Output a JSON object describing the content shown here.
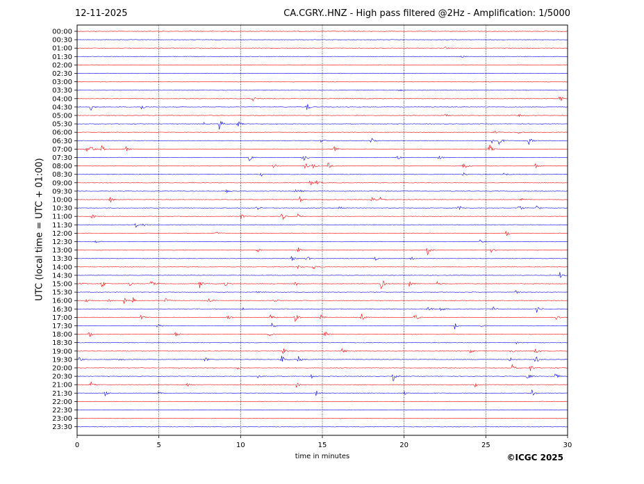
{
  "header": {
    "date": "12-11-2025",
    "title": "CA.CGRY..HNZ - High pass filtered @2Hz - Amplification: 1/5000"
  },
  "footer": {
    "copyright": "©ICGC 2025"
  },
  "chart_data": {
    "type": "line",
    "title": "CA.CGRY..HNZ - High pass filtered @2Hz - Amplification: 1/5000",
    "xlabel": "time in minutes",
    "ylabel": "UTC (local time = UTC + 01:00)",
    "xlim": [
      0,
      30
    ],
    "x_ticks": [
      0,
      5,
      10,
      15,
      20,
      25,
      30
    ],
    "x_tick_labels": [
      "0",
      "5",
      "10",
      "15",
      "20",
      "25",
      "30"
    ],
    "row_labels": [
      "00:00",
      "00:30",
      "01:00",
      "01:30",
      "02:00",
      "02:30",
      "03:00",
      "03:30",
      "04:00",
      "04:30",
      "05:00",
      "05:30",
      "06:00",
      "06:30",
      "07:00",
      "07:30",
      "08:00",
      "08:30",
      "09:00",
      "09:30",
      "10:00",
      "10:30",
      "11:00",
      "11:30",
      "12:00",
      "12:30",
      "13:00",
      "13:30",
      "14:00",
      "14:30",
      "15:00",
      "15:30",
      "16:00",
      "16:30",
      "17:00",
      "17:30",
      "18:00",
      "18:30",
      "19:00",
      "19:30",
      "20:00",
      "20:30",
      "21:00",
      "21:30",
      "22:00",
      "22:30",
      "23:00",
      "23:30"
    ],
    "row_colors": [
      "#ff0000",
      "#0000ff"
    ],
    "vertical_grid": "dotted",
    "traces": [
      {
        "row": "00:00",
        "activity": []
      },
      {
        "row": "00:30",
        "activity": []
      },
      {
        "row": "01:00",
        "activity": [
          [
            22.5,
            0.2
          ]
        ]
      },
      {
        "row": "01:30",
        "activity": [
          [
            23.5,
            0.2
          ]
        ]
      },
      {
        "row": "02:00",
        "activity": []
      },
      {
        "row": "02:30",
        "activity": []
      },
      {
        "row": "03:00",
        "activity": []
      },
      {
        "row": "03:30",
        "activity": [
          [
            19.7,
            0.2
          ]
        ]
      },
      {
        "row": "04:00",
        "activity": [
          [
            10.7,
            0.6
          ],
          [
            29.5,
            0.8
          ]
        ]
      },
      {
        "row": "04:30",
        "activity": [
          [
            0.8,
            0.7
          ],
          [
            3.9,
            0.6
          ],
          [
            14.0,
            0.9
          ]
        ]
      },
      {
        "row": "05:00",
        "activity": [
          [
            22.5,
            0.3
          ],
          [
            27.0,
            0.2
          ]
        ]
      },
      {
        "row": "05:30",
        "activity": [
          [
            8.7,
            0.9
          ],
          [
            9.8,
            0.7
          ],
          [
            7.7,
            0.3
          ]
        ]
      },
      {
        "row": "06:00",
        "activity": [
          [
            25.5,
            0.3
          ],
          [
            27.0,
            0.3
          ]
        ]
      },
      {
        "row": "06:30",
        "activity": [
          [
            14.9,
            0.5
          ],
          [
            18.0,
            0.8
          ],
          [
            25.3,
            0.7
          ],
          [
            25.8,
            0.8
          ],
          [
            27.6,
            0.8
          ]
        ]
      },
      {
        "row": "07:00",
        "activity": [
          [
            0.5,
            0.7
          ],
          [
            0.8,
            0.9
          ],
          [
            1.5,
            0.7
          ],
          [
            3.0,
            0.4
          ],
          [
            15.7,
            0.5
          ],
          [
            25.2,
            0.9
          ]
        ]
      },
      {
        "row": "07:30",
        "activity": [
          [
            10.5,
            0.7
          ],
          [
            13.8,
            0.8
          ],
          [
            19.6,
            0.6
          ],
          [
            22.1,
            0.6
          ]
        ]
      },
      {
        "row": "08:00",
        "activity": [
          [
            12.0,
            0.6
          ],
          [
            13.9,
            0.8
          ],
          [
            14.4,
            0.6
          ],
          [
            15.3,
            0.8
          ],
          [
            23.6,
            0.9
          ],
          [
            28.0,
            0.5
          ]
        ]
      },
      {
        "row": "08:30",
        "activity": [
          [
            11.2,
            0.4
          ],
          [
            23.6,
            0.4
          ],
          [
            26.1,
            0.3
          ]
        ]
      },
      {
        "row": "09:00",
        "activity": [
          [
            14.2,
            0.7
          ],
          [
            14.6,
            0.5
          ]
        ]
      },
      {
        "row": "09:30",
        "activity": [
          [
            13.3,
            0.7
          ],
          [
            13.6,
            0.5
          ],
          [
            9.1,
            0.3
          ]
        ]
      },
      {
        "row": "10:00",
        "activity": [
          [
            2.0,
            0.6
          ],
          [
            13.6,
            0.6
          ],
          [
            18.0,
            0.9
          ],
          [
            18.5,
            0.5
          ],
          [
            27.1,
            0.4
          ]
        ]
      },
      {
        "row": "10:30",
        "activity": [
          [
            10.9,
            0.6
          ],
          [
            16.0,
            0.5
          ],
          [
            23.3,
            0.6
          ],
          [
            27.0,
            0.6
          ],
          [
            28.1,
            0.6
          ]
        ]
      },
      {
        "row": "11:00",
        "activity": [
          [
            0.9,
            0.4
          ],
          [
            10.0,
            0.6
          ],
          [
            12.5,
            0.9
          ],
          [
            13.5,
            0.6
          ]
        ]
      },
      {
        "row": "11:30",
        "activity": [
          [
            3.6,
            0.5
          ],
          [
            4.0,
            0.4
          ]
        ]
      },
      {
        "row": "12:00",
        "activity": [
          [
            8.5,
            0.3
          ],
          [
            26.2,
            0.6
          ]
        ]
      },
      {
        "row": "12:30",
        "activity": [
          [
            1.1,
            0.3
          ],
          [
            24.6,
            0.4
          ]
        ]
      },
      {
        "row": "13:00",
        "activity": [
          [
            11.0,
            0.4
          ],
          [
            13.5,
            0.5
          ],
          [
            21.4,
            0.9
          ],
          [
            25.3,
            0.4
          ]
        ]
      },
      {
        "row": "13:30",
        "activity": [
          [
            13.1,
            0.5
          ],
          [
            14.0,
            0.6
          ],
          [
            18.2,
            0.4
          ],
          [
            20.4,
            0.4
          ]
        ]
      },
      {
        "row": "14:00",
        "activity": [
          [
            13.5,
            0.4
          ],
          [
            14.4,
            0.7
          ]
        ]
      },
      {
        "row": "14:30",
        "activity": [
          [
            29.5,
            0.6
          ]
        ]
      },
      {
        "row": "15:00",
        "activity": [
          [
            0.2,
            0.5
          ],
          [
            1.5,
            0.7
          ],
          [
            3.2,
            0.5
          ],
          [
            4.5,
            0.7
          ],
          [
            7.5,
            0.7
          ],
          [
            9.0,
            0.5
          ],
          [
            13.3,
            0.5
          ],
          [
            18.6,
            1.0
          ],
          [
            20.3,
            0.6
          ],
          [
            22.0,
            0.4
          ]
        ]
      },
      {
        "row": "15:30",
        "activity": [
          [
            11.0,
            0.3
          ],
          [
            26.8,
            0.3
          ]
        ]
      },
      {
        "row": "16:00",
        "activity": [
          [
            0.5,
            0.5
          ],
          [
            1.9,
            0.5
          ],
          [
            2.8,
            0.9
          ],
          [
            3.4,
            0.6
          ],
          [
            5.4,
            0.4
          ],
          [
            8.0,
            0.4
          ],
          [
            12.0,
            0.3
          ]
        ]
      },
      {
        "row": "16:30",
        "activity": [
          [
            10.0,
            0.5
          ],
          [
            21.4,
            0.6
          ],
          [
            22.2,
            0.6
          ],
          [
            25.4,
            0.6
          ],
          [
            28.1,
            0.6
          ]
        ]
      },
      {
        "row": "17:00",
        "activity": [
          [
            3.9,
            0.6
          ],
          [
            9.2,
            0.5
          ],
          [
            11.8,
            0.5
          ],
          [
            13.3,
            1.0
          ],
          [
            14.9,
            0.5
          ],
          [
            17.4,
            0.6
          ],
          [
            20.6,
            0.8
          ],
          [
            29.3,
            0.6
          ]
        ]
      },
      {
        "row": "17:30",
        "activity": [
          [
            4.9,
            0.5
          ],
          [
            11.9,
            0.5
          ],
          [
            23.1,
            0.6
          ],
          [
            24.7,
            0.4
          ]
        ]
      },
      {
        "row": "18:00",
        "activity": [
          [
            0.7,
            0.7
          ],
          [
            6.0,
            0.5
          ],
          [
            11.7,
            0.5
          ],
          [
            15.1,
            0.7
          ]
        ]
      },
      {
        "row": "18:30",
        "activity": [
          [
            26.8,
            0.3
          ]
        ]
      },
      {
        "row": "19:00",
        "activity": [
          [
            12.6,
            0.5
          ],
          [
            16.2,
            0.6
          ],
          [
            24.0,
            0.6
          ],
          [
            26.5,
            0.5
          ],
          [
            28.0,
            0.9
          ]
        ]
      },
      {
        "row": "19:30",
        "activity": [
          [
            0.1,
            0.6
          ],
          [
            2.5,
            0.4
          ],
          [
            7.8,
            0.4
          ],
          [
            12.5,
            0.7
          ],
          [
            13.5,
            0.7
          ],
          [
            26.4,
            0.5
          ],
          [
            28.0,
            1.0
          ]
        ]
      },
      {
        "row": "20:00",
        "activity": [
          [
            9.8,
            0.3
          ],
          [
            26.6,
            0.6
          ],
          [
            27.7,
            0.7
          ]
        ]
      },
      {
        "row": "20:30",
        "activity": [
          [
            11.0,
            0.4
          ],
          [
            14.3,
            0.5
          ],
          [
            19.3,
            0.9
          ],
          [
            27.5,
            0.7
          ],
          [
            29.2,
            0.7
          ]
        ]
      },
      {
        "row": "21:00",
        "activity": [
          [
            0.8,
            0.6
          ],
          [
            6.7,
            0.4
          ],
          [
            13.4,
            0.6
          ],
          [
            24.3,
            0.5
          ]
        ]
      },
      {
        "row": "21:30",
        "activity": [
          [
            1.7,
            0.5
          ],
          [
            4.9,
            0.4
          ],
          [
            14.6,
            0.5
          ],
          [
            20.0,
            0.5
          ],
          [
            27.8,
            0.6
          ]
        ]
      },
      {
        "row": "22:00",
        "activity": []
      },
      {
        "row": "22:30",
        "activity": []
      },
      {
        "row": "23:00",
        "activity": []
      },
      {
        "row": "23:30",
        "activity": []
      }
    ]
  }
}
